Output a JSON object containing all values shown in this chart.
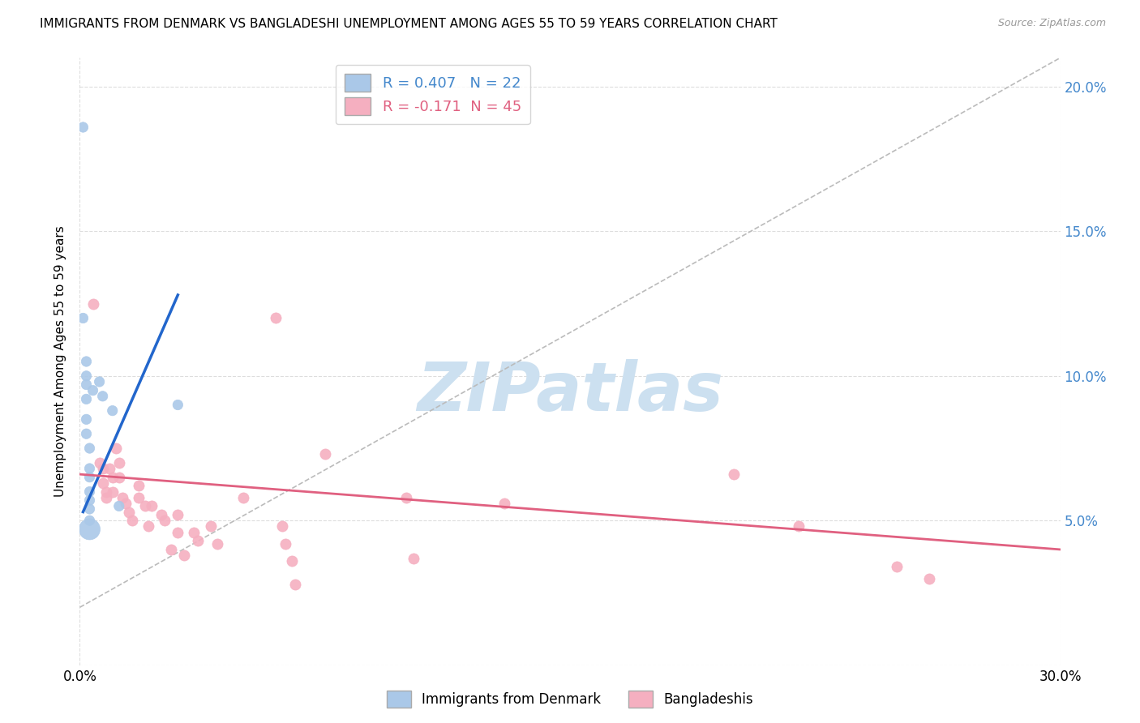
{
  "title": "IMMIGRANTS FROM DENMARK VS BANGLADESHI UNEMPLOYMENT AMONG AGES 55 TO 59 YEARS CORRELATION CHART",
  "source": "Source: ZipAtlas.com",
  "ylabel": "Unemployment Among Ages 55 to 59 years",
  "xlim": [
    0.0,
    0.3
  ],
  "ylim": [
    0.0,
    0.21
  ],
  "yticks": [
    0.0,
    0.05,
    0.1,
    0.15,
    0.2
  ],
  "xticks": [
    0.0,
    0.05,
    0.1,
    0.15,
    0.2,
    0.25,
    0.3
  ],
  "denmark_color": "#aac8e8",
  "bangladesh_color": "#f5afc0",
  "denmark_line_color": "#2266cc",
  "bangladesh_line_color": "#e06080",
  "denmark_scatter": [
    [
      0.001,
      0.186
    ],
    [
      0.001,
      0.12
    ],
    [
      0.002,
      0.105
    ],
    [
      0.002,
      0.1
    ],
    [
      0.002,
      0.097
    ],
    [
      0.002,
      0.092
    ],
    [
      0.002,
      0.085
    ],
    [
      0.002,
      0.08
    ],
    [
      0.003,
      0.075
    ],
    [
      0.003,
      0.068
    ],
    [
      0.003,
      0.065
    ],
    [
      0.003,
      0.06
    ],
    [
      0.003,
      0.057
    ],
    [
      0.003,
      0.054
    ],
    [
      0.003,
      0.05
    ],
    [
      0.003,
      0.047
    ],
    [
      0.004,
      0.095
    ],
    [
      0.006,
      0.098
    ],
    [
      0.007,
      0.093
    ],
    [
      0.01,
      0.088
    ],
    [
      0.012,
      0.055
    ],
    [
      0.03,
      0.09
    ]
  ],
  "denmark_scatter_sizes": [
    80,
    80,
    80,
    80,
    80,
    80,
    80,
    80,
    80,
    80,
    80,
    80,
    80,
    80,
    80,
    350,
    80,
    80,
    80,
    80,
    80,
    80
  ],
  "bangladesh_scatter": [
    [
      0.004,
      0.125
    ],
    [
      0.006,
      0.07
    ],
    [
      0.007,
      0.068
    ],
    [
      0.007,
      0.063
    ],
    [
      0.008,
      0.06
    ],
    [
      0.008,
      0.058
    ],
    [
      0.009,
      0.068
    ],
    [
      0.01,
      0.065
    ],
    [
      0.01,
      0.06
    ],
    [
      0.011,
      0.075
    ],
    [
      0.012,
      0.07
    ],
    [
      0.012,
      0.065
    ],
    [
      0.013,
      0.058
    ],
    [
      0.014,
      0.056
    ],
    [
      0.015,
      0.053
    ],
    [
      0.016,
      0.05
    ],
    [
      0.018,
      0.062
    ],
    [
      0.018,
      0.058
    ],
    [
      0.02,
      0.055
    ],
    [
      0.021,
      0.048
    ],
    [
      0.022,
      0.055
    ],
    [
      0.025,
      0.052
    ],
    [
      0.026,
      0.05
    ],
    [
      0.028,
      0.04
    ],
    [
      0.03,
      0.052
    ],
    [
      0.03,
      0.046
    ],
    [
      0.032,
      0.038
    ],
    [
      0.035,
      0.046
    ],
    [
      0.036,
      0.043
    ],
    [
      0.04,
      0.048
    ],
    [
      0.042,
      0.042
    ],
    [
      0.05,
      0.058
    ],
    [
      0.06,
      0.12
    ],
    [
      0.062,
      0.048
    ],
    [
      0.063,
      0.042
    ],
    [
      0.065,
      0.036
    ],
    [
      0.066,
      0.028
    ],
    [
      0.075,
      0.073
    ],
    [
      0.1,
      0.058
    ],
    [
      0.102,
      0.037
    ],
    [
      0.13,
      0.056
    ],
    [
      0.2,
      0.066
    ],
    [
      0.22,
      0.048
    ],
    [
      0.25,
      0.034
    ],
    [
      0.26,
      0.03
    ]
  ],
  "background_color": "#ffffff",
  "watermark_text": "ZIPatlas",
  "watermark_color": "#cce0f0",
  "legend_denmark": "R = 0.407   N = 22",
  "legend_bangladesh": "R = -0.171  N = 45",
  "denmark_line_x": [
    0.001,
    0.03
  ],
  "denmark_line_y": [
    0.053,
    0.128
  ],
  "bangladesh_line_x": [
    0.0,
    0.3
  ],
  "bangladesh_line_y": [
    0.066,
    0.04
  ],
  "dashed_line_x": [
    0.0,
    0.3
  ],
  "dashed_line_y": [
    0.02,
    0.21
  ]
}
